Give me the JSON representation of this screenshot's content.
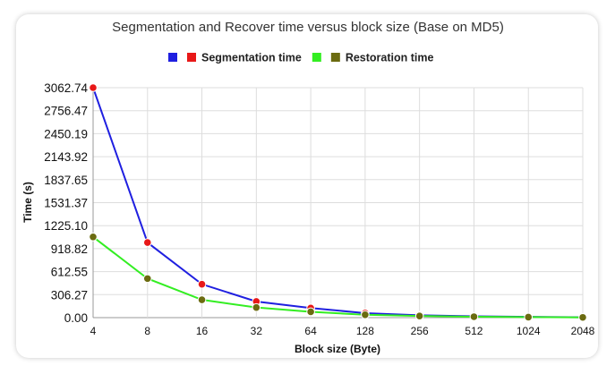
{
  "chart_data": {
    "type": "line",
    "title": "Segmentation and Recover time versus block size (Base on MD5)",
    "xlabel": "Block size (Byte)",
    "ylabel": "Time (s)",
    "categories": [
      "4",
      "8",
      "16",
      "32",
      "64",
      "128",
      "256",
      "512",
      "1024",
      "2048"
    ],
    "y_ticks": [
      "0.00",
      "306.27",
      "612.55",
      "918.82",
      "1225.10",
      "1531.37",
      "1837.65",
      "2143.92",
      "2450.19",
      "2756.47",
      "3062.74"
    ],
    "ylim": [
      0,
      3062.74
    ],
    "grid": true,
    "legend_position": "top-center",
    "series": [
      {
        "name": "Segmentation time",
        "line_color": "#1f1fe0",
        "marker_color": "#e81818",
        "values": [
          3062.74,
          1000,
          445,
          215,
          128,
          60,
          32,
          18,
          10,
          5
        ]
      },
      {
        "name": "Restoration time",
        "line_color": "#33ee22",
        "marker_color": "#6b6b10",
        "values": [
          1075,
          520,
          238,
          135,
          78,
          38,
          22,
          12,
          7,
          3
        ]
      }
    ]
  }
}
